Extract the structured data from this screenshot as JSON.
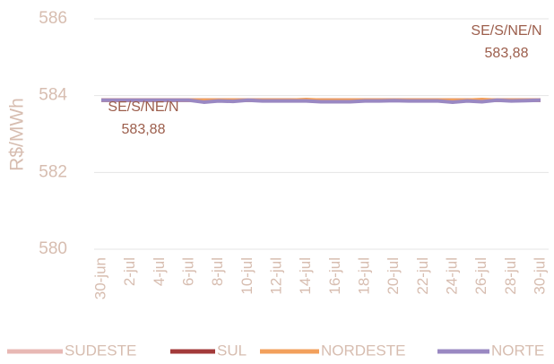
{
  "chart_data": {
    "type": "line",
    "y_label": "R$/MWh",
    "categories": [
      "30-jun",
      null,
      "2-jul",
      null,
      "4-jul",
      null,
      "6-jul",
      null,
      "8-jul",
      null,
      "10-jul",
      null,
      "12-jul",
      null,
      "14-jul",
      null,
      "16-jul",
      null,
      "18-jul",
      null,
      "20-jul",
      null,
      "22-jul",
      null,
      "24-jul",
      null,
      "26-jul",
      null,
      "28-jul",
      null,
      "30-jul"
    ],
    "series": [
      {
        "name": "SUDESTE",
        "color": "#e8b8b4",
        "values": [
          583.88,
          583.88,
          583.88,
          583.88,
          583.88,
          583.88,
          583.88,
          583.88,
          583.88,
          583.88,
          583.88,
          583.88,
          583.88,
          583.88,
          583.88,
          583.88,
          583.88,
          583.88,
          583.88,
          583.88,
          583.88,
          583.88,
          583.88,
          583.88,
          583.88,
          583.88,
          583.88,
          583.88,
          583.88,
          583.88,
          583.88
        ]
      },
      {
        "name": "SUL",
        "color": "#a33a3a",
        "values": [
          583.88,
          583.88,
          583.88,
          583.88,
          583.88,
          583.88,
          583.88,
          583.88,
          583.88,
          583.88,
          583.88,
          583.88,
          583.88,
          583.88,
          583.88,
          583.88,
          583.88,
          583.88,
          583.88,
          583.88,
          583.88,
          583.88,
          583.88,
          583.88,
          583.88,
          583.88,
          583.88,
          583.88,
          583.88,
          583.88,
          583.88
        ]
      },
      {
        "name": "NORDESTE",
        "color": "#f2a05c",
        "values": [
          583.88,
          583.88,
          583.88,
          583.88,
          583.88,
          583.88,
          583.88,
          583.88,
          583.88,
          583.88,
          583.88,
          583.88,
          583.88,
          583.88,
          583.9,
          583.88,
          583.88,
          583.88,
          583.88,
          583.88,
          583.88,
          583.88,
          583.88,
          583.88,
          583.88,
          583.88,
          583.9,
          583.88,
          583.88,
          583.88,
          583.88
        ]
      },
      {
        "name": "NORTE",
        "color": "#9a88c2",
        "values": [
          583.88,
          583.88,
          583.88,
          583.88,
          583.88,
          583.88,
          583.88,
          583.83,
          583.86,
          583.85,
          583.88,
          583.86,
          583.86,
          583.86,
          583.86,
          583.84,
          583.84,
          583.84,
          583.86,
          583.86,
          583.87,
          583.86,
          583.86,
          583.86,
          583.83,
          583.86,
          583.84,
          583.88,
          583.86,
          583.87,
          583.88
        ],
        "value_labels": [
          "583,88",
          null,
          null,
          null,
          null,
          null,
          null,
          null,
          null,
          null,
          null,
          null,
          null,
          null,
          null,
          null,
          null,
          null,
          null,
          null,
          null,
          null,
          null,
          null,
          null,
          null,
          null,
          null,
          null,
          null,
          "583,88"
        ]
      }
    ],
    "annotations": [
      "SE/S/NE/N",
      "SE/S/NE/N"
    ],
    "ylim": [
      580,
      586
    ],
    "yticks": [
      580,
      582,
      584,
      586
    ],
    "grid": true
  }
}
